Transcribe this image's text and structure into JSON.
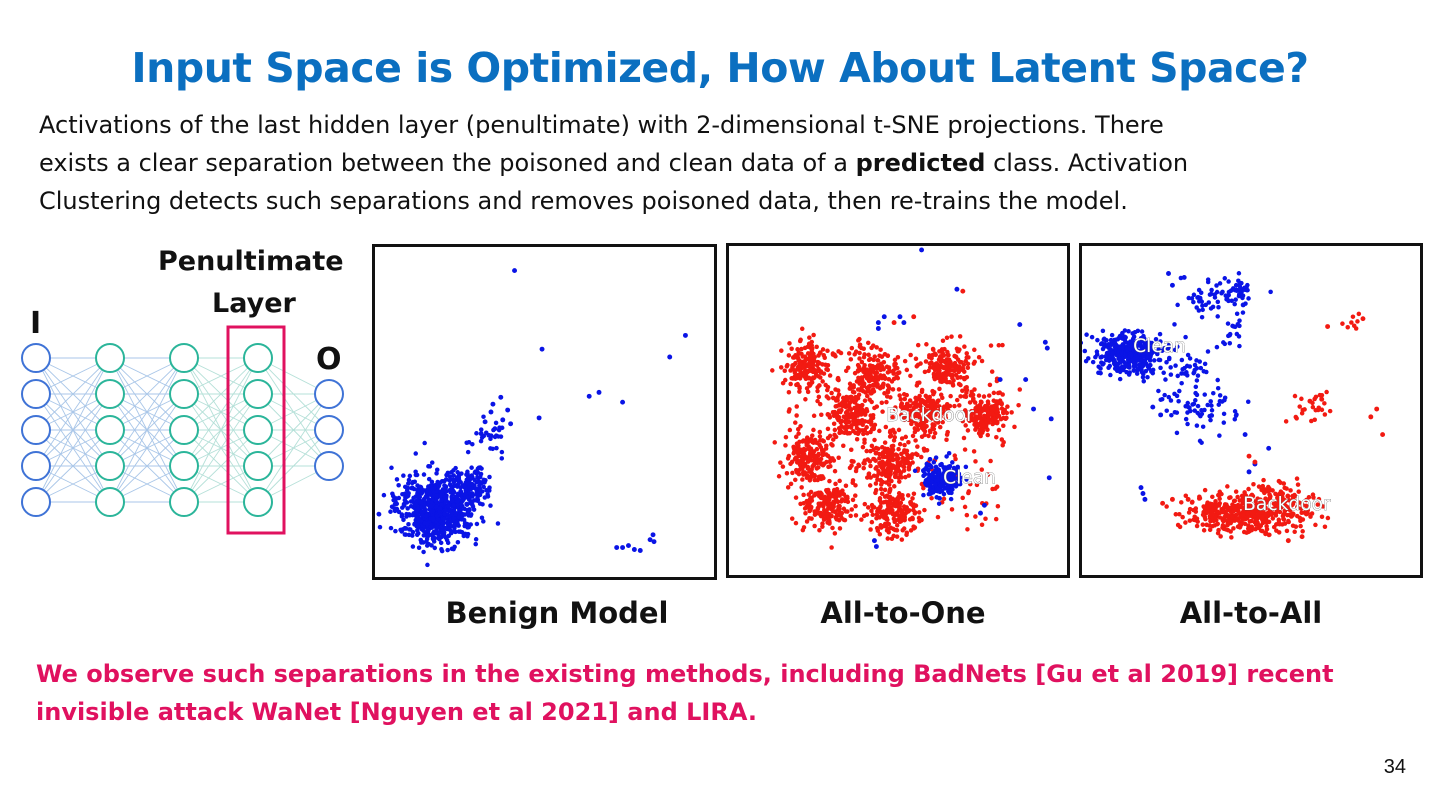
{
  "slide": {
    "title": "Input Space is Optimized, How About Latent Space?",
    "intro": [
      {
        "before": "Activations of the last hidden layer (penultimate) with 2-dimensional t-SNE projections. There",
        "bold": "",
        "after": ""
      },
      {
        "before": "exists a clear separation between the poisoned and clean data of a ",
        "bold": "predicted",
        "after": " class. Activation"
      },
      {
        "before": "Clustering detects such separations and removes poisoned data, then re-trains the model.",
        "bold": "",
        "after": ""
      }
    ],
    "network": {
      "penultimate_label_line1": "Penultimate",
      "penultimate_label_line2": "Layer",
      "input_label": "I",
      "output_label": "O"
    },
    "plots": [
      {
        "caption": "Benign Model",
        "annotations": []
      },
      {
        "caption": "All-to-One",
        "annotations": [
          "Backdoor",
          "Clean"
        ]
      },
      {
        "caption": "All-to-All",
        "annotations": [
          "Clean",
          "Backdoor"
        ]
      }
    ],
    "observation": {
      "line1": "We observe such separations in the existing methods, including BadNets [Gu et al 2019] recent",
      "line2": "invisible attack WaNet [Nguyen et al 2021] and LIRA."
    },
    "page_number": "34",
    "colors": {
      "title": "#0b6fc0",
      "highlight": "#e0115f",
      "clean": "#0a14e6",
      "backdoor": "#f21a12",
      "penultimate_box": "#e0115f"
    }
  }
}
